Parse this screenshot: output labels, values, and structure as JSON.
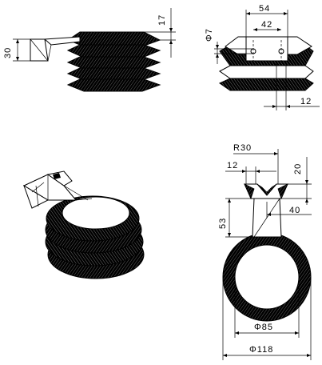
{
  "drawing": {
    "background": "#ffffff",
    "ink_color": "#000000",
    "views": {
      "side_view": {
        "dims": {
          "height_30": "30",
          "top_17": "17"
        }
      },
      "front_view": {
        "dims": {
          "width_54": "54",
          "width_42": "42",
          "dia_7": "Φ7",
          "offset_12": "12"
        }
      },
      "iso_view": {},
      "top_view": {
        "dims": {
          "radius_30": "R30",
          "slot_12": "12",
          "depth_20": "20",
          "length_53": "53",
          "offset_40": "40",
          "inner_dia_85": "Φ85",
          "outer_dia_118": "Φ118"
        }
      }
    }
  }
}
